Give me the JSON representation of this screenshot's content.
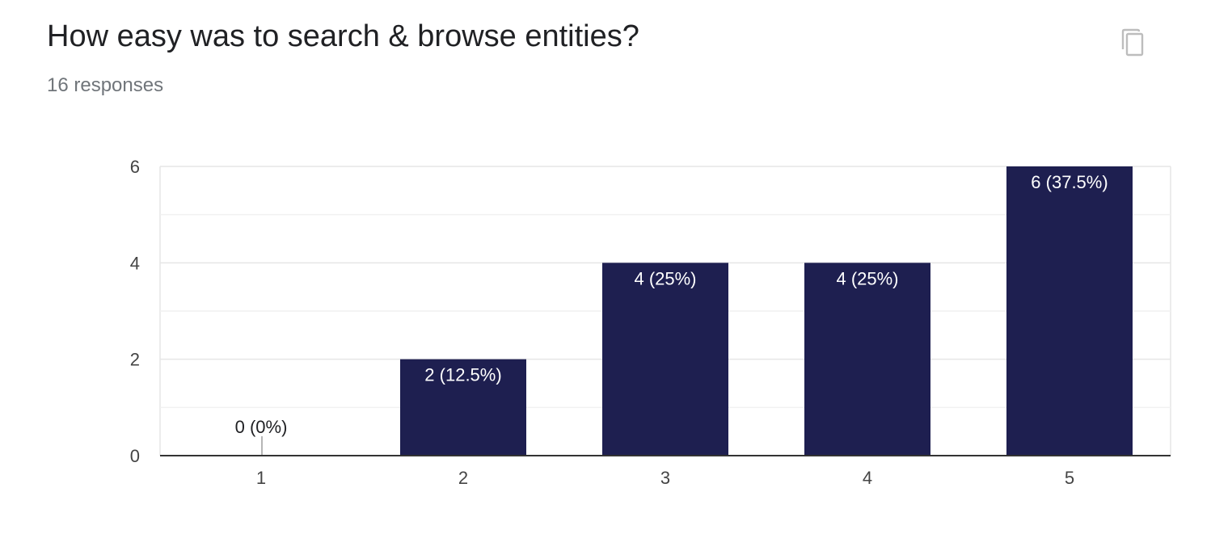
{
  "question": {
    "title": "How easy was to search & browse entities?",
    "response_count": "16 responses"
  },
  "toolbar": {
    "copy_icon": "copy-icon"
  },
  "colors": {
    "bar": "#1e1f50",
    "grid": "#e6e6e6",
    "axis": "#333333",
    "label_inside": "#ffffff",
    "label_outside": "#202124"
  },
  "chart_data": {
    "type": "bar",
    "categories": [
      "1",
      "2",
      "3",
      "4",
      "5"
    ],
    "values": [
      0,
      2,
      4,
      4,
      6
    ],
    "data_labels": [
      "0 (0%)",
      "2 (12.5%)",
      "4 (25%)",
      "4 (25%)",
      "6 (37.5%)"
    ],
    "y_ticks": [
      "0",
      "2",
      "4",
      "6"
    ],
    "ylim": [
      0,
      6
    ],
    "grid": true,
    "legend": "none"
  }
}
